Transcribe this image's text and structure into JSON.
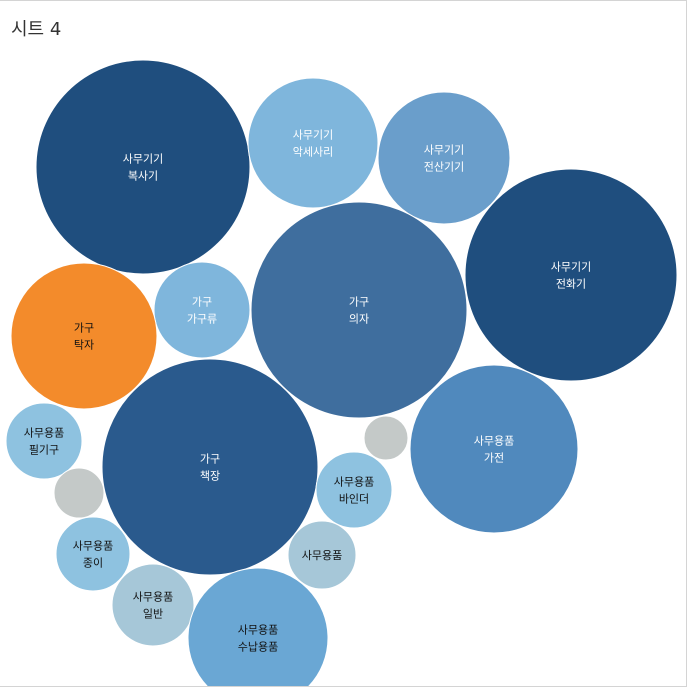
{
  "sheet": {
    "title": "시트 4"
  },
  "chart_data": {
    "type": "packed-bubble",
    "title": "시트 4",
    "bubbles": [
      {
        "lines": [
          "사무기기",
          "복사기"
        ],
        "color": "#1f4e7e"
      },
      {
        "lines": [
          "사무기기",
          "악세사리"
        ],
        "color": "#7fb6dc"
      },
      {
        "lines": [
          "사무기기",
          "전산기기"
        ],
        "color": "#6a9ecb"
      },
      {
        "lines": [
          "사무기기",
          "전화기"
        ],
        "color": "#1f4e7e"
      },
      {
        "lines": [
          "가구",
          "의자"
        ],
        "color": "#3f6e9e"
      },
      {
        "lines": [
          "가구",
          "가구류"
        ],
        "color": "#7fb6dc"
      },
      {
        "lines": [
          "가구",
          "탁자"
        ],
        "color": "#f38b2b",
        "dark_label": true
      },
      {
        "lines": [
          "가구",
          "책장"
        ],
        "color": "#2a5a8d"
      },
      {
        "lines": [
          "사무용품",
          "가전"
        ],
        "color": "#5089bd"
      },
      {
        "lines": [
          "사무용품",
          "필기구"
        ],
        "color": "#8ec2e0",
        "dark_label": true
      },
      {
        "lines": [],
        "color": "#c4c9c8"
      },
      {
        "lines": [],
        "color": "#c4c9c8"
      },
      {
        "lines": [
          "사무용품",
          "바인더"
        ],
        "color": "#8ec2e0",
        "dark_label": true
      },
      {
        "lines": [
          "사무용품"
        ],
        "color": "#a6c7d8",
        "dark_label": true
      },
      {
        "lines": [
          "사무용품",
          "종이"
        ],
        "color": "#8ec2e0",
        "dark_label": true
      },
      {
        "lines": [
          "사무용품",
          "일반"
        ],
        "color": "#a6c7d8",
        "dark_label": true
      },
      {
        "lines": [
          "사무용품",
          "수납용품"
        ],
        "color": "#6aa7d4",
        "dark_label": true
      }
    ]
  }
}
